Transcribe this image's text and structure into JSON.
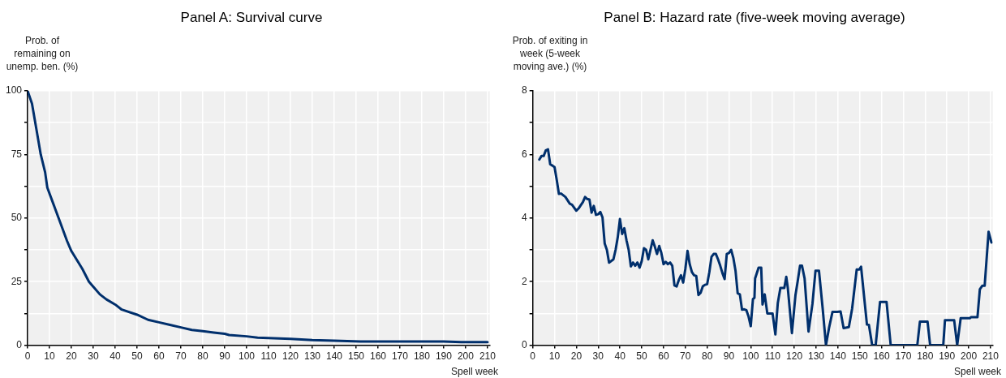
{
  "chart_data": [
    {
      "type": "line",
      "title": "Panel A: Survival curve",
      "xlabel": "Spell week",
      "ylabel": "Prob. of remaining on unemp. ben. (%)",
      "xlim": [
        0,
        211
      ],
      "xticks": [
        0,
        10,
        20,
        30,
        40,
        50,
        60,
        70,
        80,
        90,
        100,
        110,
        120,
        130,
        140,
        150,
        160,
        170,
        180,
        190,
        200,
        210
      ],
      "ylim": [
        0,
        100
      ],
      "yticks": [
        0,
        {
          "value": 12.5,
          "label": null
        },
        25,
        {
          "value": 37.5,
          "label": null
        },
        50,
        {
          "value": 62.5,
          "label": null
        },
        75,
        {
          "value": 87.5,
          "label": null
        },
        100
      ],
      "grid": true,
      "series": [
        {
          "color": "#002f6c",
          "x": [
            0,
            2,
            4,
            6,
            8,
            9,
            12,
            15,
            18,
            20,
            25,
            28,
            30,
            33,
            36,
            40,
            43,
            50,
            55,
            60,
            65,
            70,
            75,
            80,
            85,
            90,
            92,
            100,
            105,
            120,
            130,
            140,
            152,
            190,
            198,
            210
          ],
          "values": [
            100,
            95,
            85,
            75,
            68,
            62,
            55,
            48,
            41,
            37,
            30,
            25,
            23,
            20,
            18,
            16,
            14,
            12,
            10,
            9,
            8,
            7,
            6,
            5.5,
            5,
            4.5,
            4,
            3.5,
            3,
            2.5,
            2,
            1.8,
            1.5,
            1.5,
            1.2,
            1.2
          ]
        }
      ]
    },
    {
      "type": "line",
      "title": "Panel B: Hazard rate (five-week moving average)",
      "xlabel": "Spell week",
      "ylabel": "Prob. of exiting in week (5-week moving ave.) (%)",
      "xlim": [
        0,
        211
      ],
      "xticks": [
        0,
        10,
        20,
        30,
        40,
        50,
        60,
        70,
        80,
        90,
        100,
        110,
        120,
        130,
        140,
        150,
        160,
        170,
        180,
        190,
        200,
        210
      ],
      "ylim": [
        0,
        8
      ],
      "yticks": [
        0,
        {
          "value": 1,
          "label": null
        },
        2,
        {
          "value": 3,
          "label": null
        },
        4,
        {
          "value": 5,
          "label": null
        },
        6,
        {
          "value": 7,
          "label": null
        },
        8
      ],
      "grid": true,
      "series": [
        {
          "color": "#002f6c",
          "x": [
            3,
            4,
            5,
            6,
            7,
            8,
            9,
            10,
            11,
            12,
            13,
            15,
            17,
            18,
            20,
            21,
            23,
            24,
            25,
            26,
            27,
            28,
            29,
            30,
            31,
            32,
            33,
            34,
            35,
            36,
            37,
            38,
            39,
            40,
            41,
            42,
            43,
            44,
            45,
            46,
            47,
            48,
            49,
            50,
            51,
            52,
            53,
            54,
            55,
            56,
            57,
            58,
            59,
            60,
            61,
            62,
            63,
            64,
            65,
            66,
            67,
            68,
            69,
            70,
            71,
            72,
            73,
            74,
            75,
            76,
            77,
            78,
            79,
            80,
            81,
            82,
            83,
            84,
            85,
            86,
            87,
            88,
            89,
            90,
            91,
            92,
            93,
            94,
            95,
            96,
            97,
            98,
            99,
            100,
            101,
            101.7,
            102,
            103.6,
            104.8,
            105.4,
            106.4,
            107.6,
            110,
            111.3,
            112.4,
            113.6,
            115.4,
            116.3,
            117,
            118.9,
            120.5,
            121.5,
            122.6,
            123.5,
            124.7,
            126.5,
            128.3,
            129.7,
            131.3,
            133,
            134.5,
            135.9,
            137.5,
            139.6,
            141.2,
            142.6,
            145,
            146.5,
            148.6,
            149.8,
            150.6,
            153.3,
            154.2,
            155.7,
            157.3,
            159.3,
            162.3,
            164.2,
            176.4,
            177.6,
            181.1,
            182.3,
            188.3,
            189.1,
            193.3,
            194.7,
            196.3,
            200.5,
            201,
            204,
            205.1,
            206.2,
            207.3,
            209.1,
            210.4
          ],
          "values": [
            5.84,
            5.95,
            5.95,
            6.13,
            6.16,
            5.69,
            5.65,
            5.6,
            5.2,
            4.76,
            4.77,
            4.66,
            4.45,
            4.42,
            4.23,
            4.3,
            4.5,
            4.66,
            4.6,
            4.58,
            4.17,
            4.38,
            4.1,
            4.12,
            4.19,
            4.02,
            3.2,
            3.0,
            2.6,
            2.65,
            2.7,
            3.0,
            3.4,
            3.97,
            3.5,
            3.68,
            3.3,
            3.0,
            2.48,
            2.6,
            2.5,
            2.6,
            2.44,
            2.65,
            3.05,
            3.0,
            2.7,
            3.0,
            3.3,
            3.1,
            2.87,
            3.12,
            2.9,
            2.55,
            2.62,
            2.55,
            2.6,
            2.5,
            1.88,
            1.85,
            2.05,
            2.2,
            1.97,
            2.4,
            2.97,
            2.55,
            2.3,
            2.2,
            2.18,
            1.58,
            1.65,
            1.85,
            1.9,
            1.92,
            2.3,
            2.78,
            2.87,
            2.87,
            2.7,
            2.5,
            2.27,
            2.08,
            2.87,
            2.9,
            3.0,
            2.75,
            2.35,
            1.63,
            1.6,
            1.12,
            1.13,
            1.1,
            0.9,
            0.6,
            1.45,
            1.49,
            2.1,
            2.44,
            2.44,
            1.28,
            1.6,
            1.0,
            1.0,
            0.34,
            1.32,
            1.8,
            1.8,
            2.15,
            1.8,
            0.38,
            1.57,
            2.0,
            2.5,
            2.5,
            2.1,
            0.43,
            1.3,
            2.34,
            2.34,
            1.15,
            0,
            0.54,
            1.05,
            1.05,
            1.06,
            0.54,
            0.57,
            1.15,
            2.38,
            2.38,
            2.47,
            0.65,
            0.64,
            0,
            0,
            1.36,
            1.36,
            0,
            0,
            0.74,
            0.74,
            0,
            0,
            0.79,
            0.79,
            0,
            0.85,
            0.85,
            0.88,
            0.88,
            1.76,
            1.87,
            1.87,
            3.57,
            3.23
          ]
        }
      ]
    }
  ]
}
